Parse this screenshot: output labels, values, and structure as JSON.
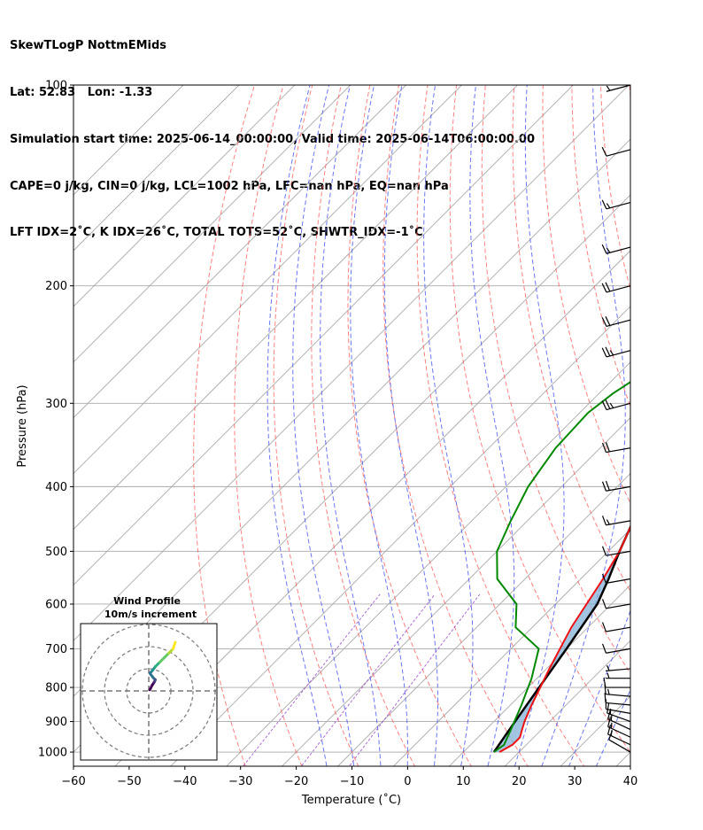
{
  "header": {
    "line1": "SkewTLogP NottmEMids",
    "line2": "Lat: 52.83   Lon: -1.33",
    "line3": "Simulation start time: 2025-06-14_00:00:00, Valid time: 2025-06-14T06:00:00.00",
    "line4": "CAPE=0 j/kg, CIN=0 j/kg, LCL=1002 hPa, LFC=nan hPa, EQ=nan hPa",
    "line5": "LFT IDX=2˚C, K IDX=26˚C, TOTAL TOTS=52˚C, SHWTR_IDX=-1˚C"
  },
  "chart_data": [
    {
      "type": "line",
      "subtype": "skew-t log-p",
      "xlabel": "Temperature (˚C)",
      "ylabel": "Pressure (hPa)",
      "xlim": [
        -60,
        40
      ],
      "ylim": [
        1050,
        100
      ],
      "y_scale": "log",
      "x_ticks": [
        -60,
        -50,
        -40,
        -30,
        -20,
        -10,
        0,
        10,
        20,
        30,
        40
      ],
      "x_tick_labels": [
        "−60",
        "−50",
        "−40",
        "−30",
        "−20",
        "−10",
        "0",
        "10",
        "20",
        "30",
        "40"
      ],
      "y_ticks": [
        1000,
        900,
        800,
        700,
        600,
        500,
        400,
        300,
        200,
        100
      ],
      "grid": true,
      "colors": {
        "temperature": "#ee1111",
        "dewpoint": "#008800",
        "parcel": "#000000",
        "cape_fill": "#7aaed6",
        "isotherm": "#aaaaaa",
        "dry_adiabat": "#ff5555",
        "moist_adiabat": "#4455ee",
        "mixing_ratio": "#9944cc",
        "wind_barb": "#000000"
      },
      "series": [
        {
          "key": "temperature",
          "x": [
            16.5,
            17.5,
            17.5,
            16.5,
            15.5,
            13.8,
            10.5,
            7,
            4,
            2,
            -1,
            -3,
            -6,
            -9,
            -10,
            -10.5,
            -10,
            -8,
            -6.5,
            -5.5,
            -5,
            -3.5,
            -1.5,
            1
          ],
          "y": [
            1000,
            975,
            950,
            925,
            900,
            850,
            750,
            650,
            550,
            500,
            450,
            400,
            350,
            300,
            270,
            240,
            220,
            200,
            185,
            175,
            160,
            140,
            120,
            100
          ]
        },
        {
          "key": "dewpoint",
          "x": [
            15.5,
            16,
            14.5,
            12,
            9,
            5,
            -3,
            -7,
            -15,
            -20,
            -23,
            -26,
            -28,
            -28.5,
            -27.5,
            -25.5,
            -23,
            -20,
            -22,
            -27,
            -34,
            -37,
            -37,
            -33.5
          ],
          "y": [
            1000,
            975,
            925,
            850,
            775,
            700,
            650,
            600,
            550,
            500,
            450,
            400,
            350,
            310,
            290,
            270,
            235,
            210,
            200,
            190,
            180,
            160,
            130,
            100
          ]
        },
        {
          "key": "parcel",
          "x": [
            15.5,
            13.8,
            12,
            10,
            7.5,
            5,
            2,
            -1,
            -5,
            -9,
            -13.5,
            -18.5,
            -24,
            -27,
            -30,
            -33,
            -36,
            -39.5,
            -43
          ],
          "y": [
            1000,
            900,
            800,
            700,
            600,
            550,
            500,
            450,
            400,
            350,
            300,
            250,
            200,
            180,
            160,
            140,
            125,
            110,
            100
          ]
        }
      ],
      "isotherms": [
        -160,
        -150,
        -140,
        -130,
        -120,
        -110,
        -100,
        -90,
        -80,
        -70,
        -60,
        -50,
        -40,
        -30,
        -20,
        -10,
        0,
        10,
        20,
        30,
        40
      ],
      "dry_adiabats_theta_c": [
        -30,
        -20,
        -10,
        0,
        10,
        20,
        30,
        40,
        50,
        60,
        70,
        80,
        90,
        100,
        110,
        120
      ],
      "moist_adiabats_c": [
        -15,
        -10,
        -5,
        0,
        5,
        10,
        15,
        20,
        25,
        30,
        35
      ],
      "mixing_ratio_lines_gkg": [
        0.4,
        1,
        2
      ],
      "wind_barbs": {
        "pressures": [
          1000,
          975,
          950,
          925,
          900,
          875,
          850,
          825,
          800,
          775,
          750,
          700,
          650,
          600,
          550,
          500,
          450,
          400,
          350,
          300,
          250,
          225,
          200,
          175,
          150,
          125,
          100
        ],
        "direction_deg": [
          300,
          295,
          295,
          295,
          290,
          280,
          275,
          275,
          270,
          270,
          265,
          260,
          260,
          260,
          260,
          260,
          260,
          260,
          260,
          255,
          255,
          255,
          255,
          255,
          255,
          255,
          255
        ],
        "speed_kt": [
          10,
          15,
          15,
          15,
          15,
          10,
          10,
          15,
          10,
          5,
          5,
          10,
          10,
          10,
          10,
          10,
          15,
          20,
          20,
          25,
          25,
          20,
          20,
          15,
          15,
          10,
          5
        ]
      }
    },
    {
      "type": "line",
      "subtype": "hodograph",
      "title": "Wind Profile",
      "subtitle": "10m/s increment",
      "rings_ms": [
        10,
        20,
        30
      ],
      "colormap": "viridis",
      "u": [
        0.5,
        1.5,
        2.5,
        3,
        2,
        0.5,
        1.5,
        3,
        5,
        7,
        9,
        11,
        12
      ],
      "v": [
        0.5,
        2.5,
        4,
        5,
        6,
        8,
        9,
        11,
        13,
        15,
        17,
        19,
        22
      ]
    }
  ]
}
